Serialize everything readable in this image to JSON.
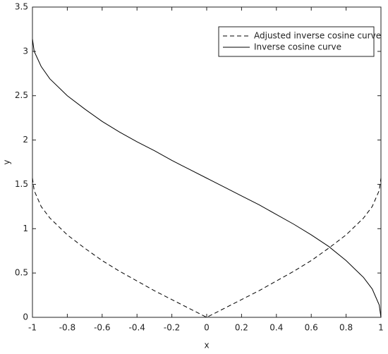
{
  "chart_data": {
    "type": "line",
    "x_label": "x",
    "y_label": "y",
    "x": [
      -1,
      -0.99,
      -0.95,
      -0.9,
      -0.8,
      -0.7,
      -0.6,
      -0.5,
      -0.4,
      -0.3,
      -0.2,
      -0.1,
      0,
      0.1,
      0.2,
      0.3,
      0.4,
      0.5,
      0.6,
      0.7,
      0.8,
      0.9,
      0.95,
      0.99,
      1
    ],
    "series": [
      {
        "name": "Adjusted inverse cosine curve",
        "color": "#000000",
        "dash": true,
        "values": [
          1.57,
          1.43,
          1.25,
          1.12,
          0.93,
          0.78,
          0.64,
          0.52,
          0.41,
          0.3,
          0.2,
          0.1,
          0,
          0.1,
          0.2,
          0.3,
          0.41,
          0.52,
          0.64,
          0.78,
          0.93,
          1.12,
          1.25,
          1.43,
          1.57
        ]
      },
      {
        "name": "Inverse cosine curve",
        "color": "#000000",
        "dash": false,
        "values": [
          3.14,
          3.0,
          2.83,
          2.69,
          2.5,
          2.35,
          2.21,
          2.09,
          1.98,
          1.88,
          1.77,
          1.67,
          1.57,
          1.47,
          1.37,
          1.27,
          1.16,
          1.05,
          0.93,
          0.8,
          0.64,
          0.45,
          0.32,
          0.14,
          0
        ]
      }
    ],
    "xlim": [
      -1,
      1
    ],
    "xticks": [
      -1,
      -0.8,
      -0.6,
      -0.4,
      -0.2,
      0,
      0.2,
      0.4,
      0.6,
      0.8,
      1
    ],
    "ylim": [
      0,
      3.5
    ],
    "yticks": [
      0,
      0.5,
      1,
      1.5,
      2,
      2.5,
      3,
      3.5
    ],
    "legend": "upper right"
  }
}
